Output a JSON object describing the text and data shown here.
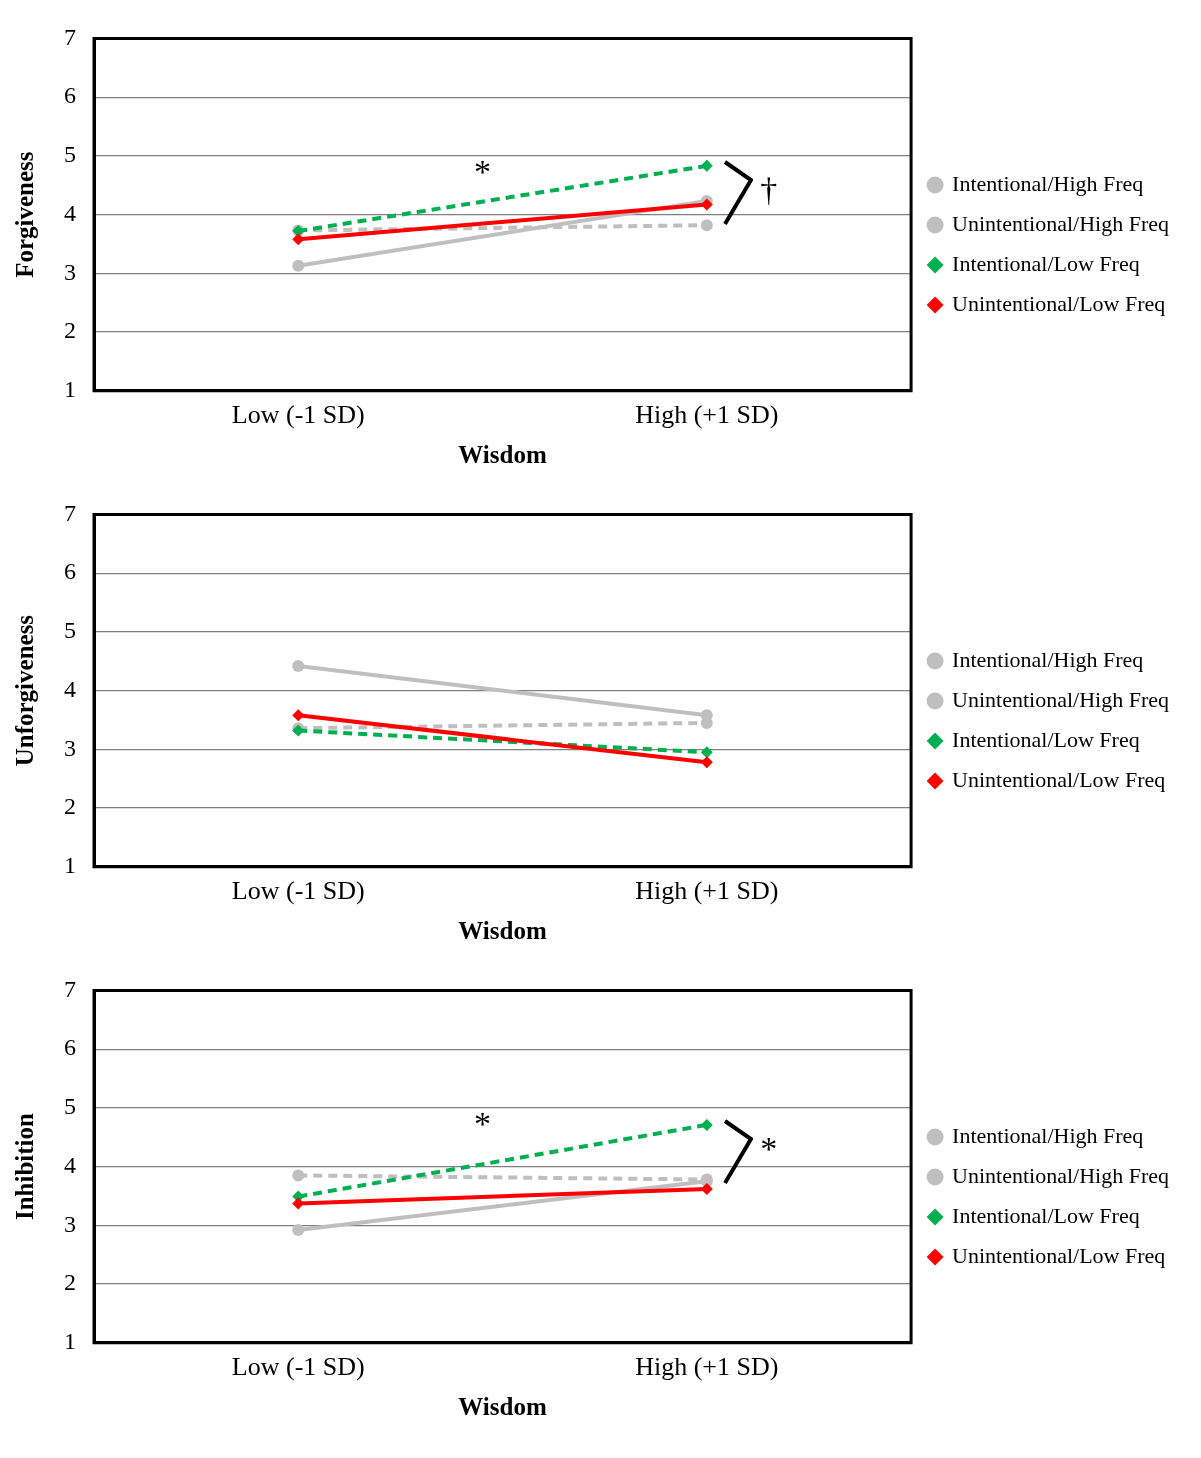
{
  "chart_data": [
    {
      "type": "line",
      "xlabel": "Wisdom",
      "ylabel": "Forgiveness",
      "categories": [
        "Low (-1 SD)",
        "High (+1 SD)"
      ],
      "ylim": [
        1,
        7
      ],
      "yticks": [
        1,
        2,
        3,
        4,
        5,
        6,
        7
      ],
      "grid": "y",
      "legend": "right",
      "series": [
        {
          "name": "Intentional/High Freq",
          "color": "#bfbfbf",
          "line_style": "dashed",
          "marker": "circle",
          "values": [
            3.73,
            3.82
          ]
        },
        {
          "name": "Unintentional/High Freq",
          "color": "#bfbfbf",
          "line_style": "solid",
          "marker": "circle",
          "values": [
            3.13,
            4.23
          ]
        },
        {
          "name": "Intentional/Low Freq",
          "color": "#00b050",
          "line_style": "dashed",
          "marker": "diamond",
          "values": [
            3.72,
            4.83
          ]
        },
        {
          "name": "Unintentional/Low Freq",
          "color": "#ff0000",
          "line_style": "solid",
          "marker": "diamond",
          "values": [
            3.58,
            4.17
          ]
        }
      ],
      "annotations": [
        "*",
        "†"
      ]
    },
    {
      "type": "line",
      "xlabel": "Wisdom",
      "ylabel": "Unforgiveness",
      "categories": [
        "Low (-1 SD)",
        "High (+1 SD)"
      ],
      "ylim": [
        1,
        7
      ],
      "yticks": [
        1,
        2,
        3,
        4,
        5,
        6,
        7
      ],
      "grid": "y",
      "legend": "right",
      "series": [
        {
          "name": "Intentional/High Freq",
          "color": "#bfbfbf",
          "line_style": "dashed",
          "marker": "circle",
          "values": [
            3.36,
            3.45
          ]
        },
        {
          "name": "Unintentional/High Freq",
          "color": "#bfbfbf",
          "line_style": "solid",
          "marker": "circle",
          "values": [
            4.42,
            3.58
          ]
        },
        {
          "name": "Intentional/Low Freq",
          "color": "#00b050",
          "line_style": "dashed",
          "marker": "diamond",
          "values": [
            3.32,
            2.95
          ]
        },
        {
          "name": "Unintentional/Low Freq",
          "color": "#ff0000",
          "line_style": "solid",
          "marker": "diamond",
          "values": [
            3.58,
            2.78
          ]
        }
      ]
    },
    {
      "type": "line",
      "xlabel": "Wisdom",
      "ylabel": "Inhibition",
      "categories": [
        "Low (-1 SD)",
        "High (+1 SD)"
      ],
      "ylim": [
        1,
        7
      ],
      "yticks": [
        1,
        2,
        3,
        4,
        5,
        6,
        7
      ],
      "grid": "y",
      "legend": "right",
      "series": [
        {
          "name": "Intentional/High Freq",
          "color": "#bfbfbf",
          "line_style": "dashed",
          "marker": "circle",
          "values": [
            3.85,
            3.78
          ]
        },
        {
          "name": "Unintentional/High Freq",
          "color": "#bfbfbf",
          "line_style": "solid",
          "marker": "circle",
          "values": [
            2.92,
            3.75
          ]
        },
        {
          "name": "Intentional/Low Freq",
          "color": "#00b050",
          "line_style": "dashed",
          "marker": "diamond",
          "values": [
            3.49,
            4.71
          ]
        },
        {
          "name": "Unintentional/Low Freq",
          "color": "#ff0000",
          "line_style": "solid",
          "marker": "diamond",
          "values": [
            3.37,
            3.62
          ]
        }
      ],
      "annotations": [
        "*",
        "*"
      ]
    }
  ]
}
